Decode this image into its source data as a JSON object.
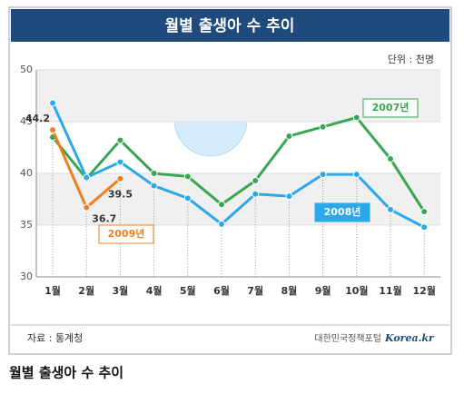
{
  "chart_data": {
    "type": "line",
    "title": "월별 출생아 수 추이",
    "unit": "단위 : 천명",
    "categories": [
      "1월",
      "2월",
      "3월",
      "4월",
      "5월",
      "6월",
      "7월",
      "8월",
      "9월",
      "10월",
      "11월",
      "12월"
    ],
    "series": [
      {
        "name": "2007년",
        "color": "#3aa655",
        "values": [
          43.5,
          39.5,
          43.2,
          40.0,
          39.7,
          37.0,
          39.3,
          43.6,
          44.5,
          45.4,
          41.4,
          36.3
        ]
      },
      {
        "name": "2008년",
        "color": "#2aa8ea",
        "values": [
          46.8,
          39.6,
          41.1,
          38.8,
          37.6,
          35.1,
          38.0,
          37.8,
          39.9,
          39.9,
          36.5,
          34.8
        ]
      },
      {
        "name": "2009년",
        "color": "#f07f22",
        "values": [
          44.2,
          36.7,
          39.5,
          null,
          null,
          null,
          null,
          null,
          null,
          null,
          null,
          null
        ]
      }
    ],
    "ylim": [
      30,
      50
    ],
    "yticks": [
      30,
      35,
      40,
      45,
      50
    ],
    "grid": true
  },
  "footer": {
    "source": "자료 : 통계청",
    "publisher": "대한민국정책포털",
    "logo": "Korea.kr"
  },
  "caption": "월별 출생아 수 추이"
}
